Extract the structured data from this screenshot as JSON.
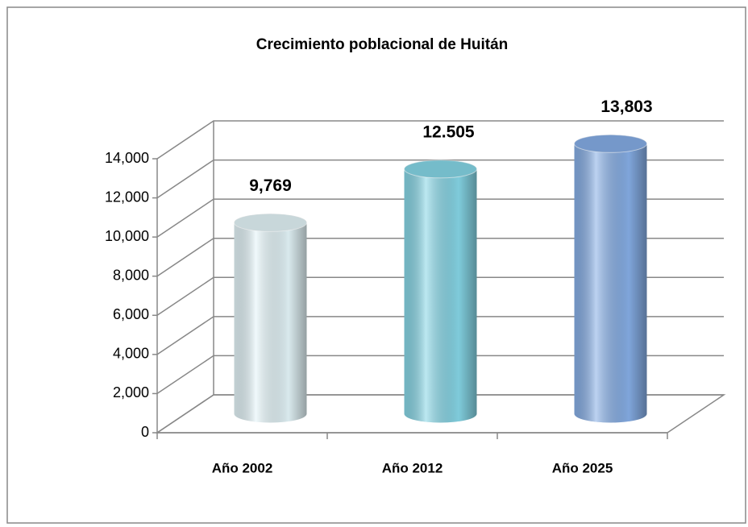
{
  "chart_data": {
    "type": "bar3d",
    "title": "Crecimiento poblacional de Huitán",
    "categories": [
      "Año 2002",
      "Año 2012",
      "Año 2025"
    ],
    "values": [
      9769,
      12505,
      13803
    ],
    "value_labels": [
      "9,769",
      "12.505",
      "13,803"
    ],
    "colors": [
      "#e4f5f9",
      "#86d6e6",
      "#86aee6"
    ],
    "ylim": [
      0,
      14000
    ],
    "yticks": [
      0,
      {
        "value": 2000,
        "label": "2,000"
      },
      {
        "value": 4000,
        "label": "4,000"
      },
      {
        "value": 6000,
        "label": "6,000"
      },
      {
        "value": 8000,
        "label": "8,000"
      },
      {
        "value": 10000,
        "label": "10,000"
      },
      {
        "value": 12000,
        "label": "12,000"
      },
      {
        "value": 14000,
        "label": "14,000"
      }
    ],
    "grid": true
  }
}
